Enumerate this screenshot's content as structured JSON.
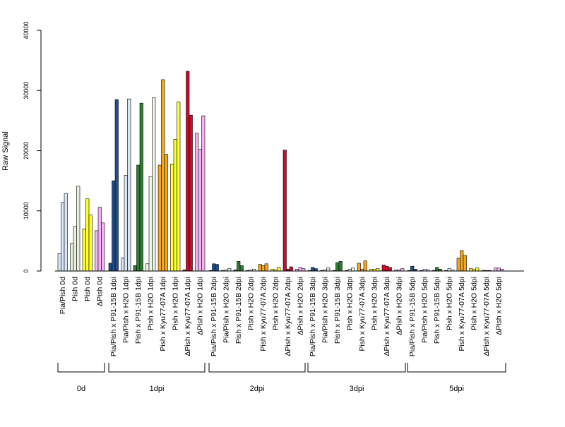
{
  "chart_data": {
    "type": "bar",
    "title": "",
    "xlabel": "",
    "ylabel": "Raw Signal",
    "ylim": [
      0,
      40000
    ],
    "yticks": [
      0,
      10000,
      20000,
      30000,
      40000
    ],
    "grid": false,
    "legend": "none",
    "bar_border_color": "#000000",
    "color_legend": {
      "Pia/Pish": "#d9e6f5",
      "P91-15B": "#1f4e8c",
      "H2O_a": "#edf5e6",
      "H2O_b": "#e6f0dc",
      "P91-15B_green": "#2e7d32",
      "Kyu77-07A": "#f5a623",
      "Pish": "#ffff33",
      "ΔPish_red": "#c8102e",
      "ΔPish": "#f5b3f5"
    },
    "groups": [
      {
        "label": "0d",
        "categories": [
          {
            "label": "Pia/Pish 0d",
            "color": "#d9e6f5",
            "values": [
              2900,
              11400,
              12900
            ]
          },
          {
            "label": "Pish 0d",
            "color": "#e6f0dc",
            "values": [
              4600,
              7400,
              14100
            ]
          },
          {
            "label": "Pish 0d",
            "color": "#ffff33",
            "values": [
              7000,
              12000,
              9300
            ]
          },
          {
            "label": "ΔPish 0d",
            "color": "#f5b3f5",
            "values": [
              6700,
              10600,
              8000
            ]
          }
        ]
      },
      {
        "label": "1dpi",
        "categories": [
          {
            "label": "Pia/Pish x P91-15B 1dpi",
            "color": "#1f4e8c",
            "values": [
              1300,
              15000,
              28500
            ]
          },
          {
            "label": "Pia/Pish x H2O 1dpi",
            "color": "#d9e6f5",
            "values": [
              2200,
              15900,
              28600
            ]
          },
          {
            "label": "Pish x P91-15B 1dpi",
            "color": "#2e7d32",
            "values": [
              900,
              17600,
              27900
            ]
          },
          {
            "label": "Pish x H2O 1dpi",
            "color": "#edf5e6",
            "values": [
              1200,
              15700,
              28800
            ]
          },
          {
            "label": "Pish x Kyu77-07A 1dpi",
            "color": "#f5a623",
            "values": [
              17600,
              31800,
              19400
            ]
          },
          {
            "label": "Pish x H2O 1dpi",
            "color": "#ffff33",
            "values": [
              17800,
              21900,
              28100
            ]
          },
          {
            "label": "ΔPish x Kyu77-07A 1dpi",
            "color": "#c8102e",
            "values": [
              200,
              33200,
              25900
            ]
          },
          {
            "label": "ΔPish x H2O 1dpi",
            "color": "#f5b3f5",
            "values": [
              22900,
              20200,
              25800
            ]
          }
        ]
      },
      {
        "label": "2dpi",
        "categories": [
          {
            "label": "Pia/Pish x P91-15B 2dpi",
            "color": "#1f4e8c",
            "values": [
              100,
              1200,
              1100
            ]
          },
          {
            "label": "Pia/Pish x H2O 2dpi",
            "color": "#d9e6f5",
            "values": [
              100,
              200,
              400
            ]
          },
          {
            "label": "Pish x P91-15B 2dpi",
            "color": "#2e7d32",
            "values": [
              200,
              1600,
              900
            ]
          },
          {
            "label": "Pish x H2O 2dpi",
            "color": "#edf5e6",
            "values": [
              100,
              200,
              300
            ]
          },
          {
            "label": "Pish x Kyu77-07A 2dpi",
            "color": "#f5a623",
            "values": [
              1100,
              900,
              1200
            ]
          },
          {
            "label": "Pish x H2O 2dpi",
            "color": "#ffff33",
            "values": [
              300,
              200,
              600
            ]
          },
          {
            "label": "ΔPish x Kyu77-07A 2dpi",
            "color": "#c8102e",
            "values": [
              20100,
              300,
              700
            ]
          },
          {
            "label": "ΔPish x H2O 2dpi",
            "color": "#f5b3f5",
            "values": [
              300,
              600,
              400
            ]
          }
        ]
      },
      {
        "label": "3dpi",
        "categories": [
          {
            "label": "Pia/Pish x P91-15B 3dpi",
            "color": "#1f4e8c",
            "values": [
              100,
              600,
              400
            ]
          },
          {
            "label": "Pia/Pish x H2O 3dpi",
            "color": "#d9e6f5",
            "values": [
              100,
              200,
              500
            ]
          },
          {
            "label": "Pish x P91-15B 3dpi",
            "color": "#2e7d32",
            "values": [
              100,
              1400,
              1600
            ]
          },
          {
            "label": "Pish x H2O 3dpi",
            "color": "#edf5e6",
            "values": [
              100,
              300,
              500
            ]
          },
          {
            "label": "Pish x Kyu77-07A 3dpi",
            "color": "#f5a623",
            "values": [
              1300,
              300,
              1700
            ]
          },
          {
            "label": "Pish x H2O 3dpi",
            "color": "#ffff33",
            "values": [
              300,
              300,
              400
            ]
          },
          {
            "label": "ΔPish x Kyu77-07A 3dpi",
            "color": "#c8102e",
            "values": [
              1000,
              800,
              600
            ]
          },
          {
            "label": "ΔPish x H2O 3dpi",
            "color": "#f5b3f5",
            "values": [
              200,
              200,
              400
            ]
          }
        ]
      },
      {
        "label": "5dpi",
        "categories": [
          {
            "label": "Pia/Pish x P91-15B 5dpi",
            "color": "#1f4e8c",
            "values": [
              100,
              800,
              300
            ]
          },
          {
            "label": "Pia/Pish x H2O 5dpi",
            "color": "#d9e6f5",
            "values": [
              100,
              300,
              200
            ]
          },
          {
            "label": "Pish x P91-15B 5dpi",
            "color": "#2e7d32",
            "values": [
              100,
              600,
              300
            ]
          },
          {
            "label": "Pish x H2O 5dpi",
            "color": "#edf5e6",
            "values": [
              100,
              400,
              200
            ]
          },
          {
            "label": "Pish x Kyu77-07A 5dpi",
            "color": "#f5a623",
            "values": [
              2100,
              3400,
              2600
            ]
          },
          {
            "label": "Pish x H2O 5dpi",
            "color": "#ffff33",
            "values": [
              400,
              300,
              500
            ]
          },
          {
            "label": "ΔPish x Kyu77-07A 5dpi",
            "color": "#c8102e",
            "values": [
              100,
              100,
              100
            ]
          },
          {
            "label": "ΔPish x H2O 5dpi",
            "color": "#f5b3f5",
            "values": [
              500,
              500,
              300
            ]
          }
        ]
      }
    ]
  }
}
